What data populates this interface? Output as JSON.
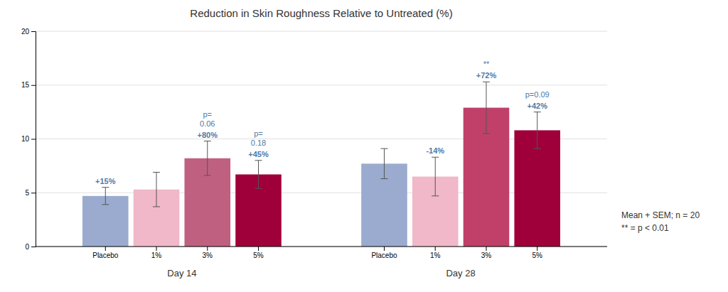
{
  "chart_data": {
    "type": "bar",
    "title": "Reduction in Skin Roughness Relative to Untreated (%)",
    "categories": [
      "Day 14",
      "Day 28"
    ],
    "series": [
      {
        "name": "Placebo",
        "colors": [
          "#9aabcf",
          "#9aabcf"
        ],
        "values": [
          4.7,
          7.7
        ],
        "errors": [
          0.8,
          1.4
        ]
      },
      {
        "name": "1%",
        "colors": [
          "#f0b8c8",
          "#f0b8c8"
        ],
        "values": [
          5.3,
          6.5
        ],
        "errors": [
          1.6,
          1.8
        ]
      },
      {
        "name": "3%",
        "colors": [
          "#c06080",
          "#c0406a"
        ],
        "values": [
          8.2,
          12.9
        ],
        "errors": [
          1.6,
          2.4
        ]
      },
      {
        "name": "5%",
        "colors": [
          "#a0003a",
          "#a0003a"
        ],
        "values": [
          6.7,
          10.8
        ],
        "errors": [
          1.3,
          1.7
        ]
      }
    ],
    "ylim": [
      0,
      20
    ],
    "yticks": [
      0,
      5,
      10,
      15,
      20
    ],
    "grid": true,
    "annotations": [
      {
        "text": "+15%",
        "category": "Day 14",
        "series": "Placebo"
      },
      {
        "text": "+80%",
        "category": "Day 14",
        "series": "3%"
      },
      {
        "text": "p=\n0.06",
        "category": "Day 14",
        "series": "3%"
      },
      {
        "text": "+45%",
        "category": "Day 14",
        "series": "5%"
      },
      {
        "text": "p=\n0.18",
        "category": "Day 14",
        "series": "5%"
      },
      {
        "text": "-14%",
        "category": "Day 28",
        "series": "1%"
      },
      {
        "text": "+72%",
        "category": "Day 28",
        "series": "3%"
      },
      {
        "text": "**",
        "category": "Day 28",
        "series": "3%"
      },
      {
        "text": "+42%",
        "category": "Day 28",
        "series": "5%"
      },
      {
        "text": "p=0.09",
        "category": "Day 28",
        "series": "5%"
      },
      {
        "text": "Mean + SEM; n = 20"
      },
      {
        "text": "** = p < 0.01"
      }
    ]
  }
}
